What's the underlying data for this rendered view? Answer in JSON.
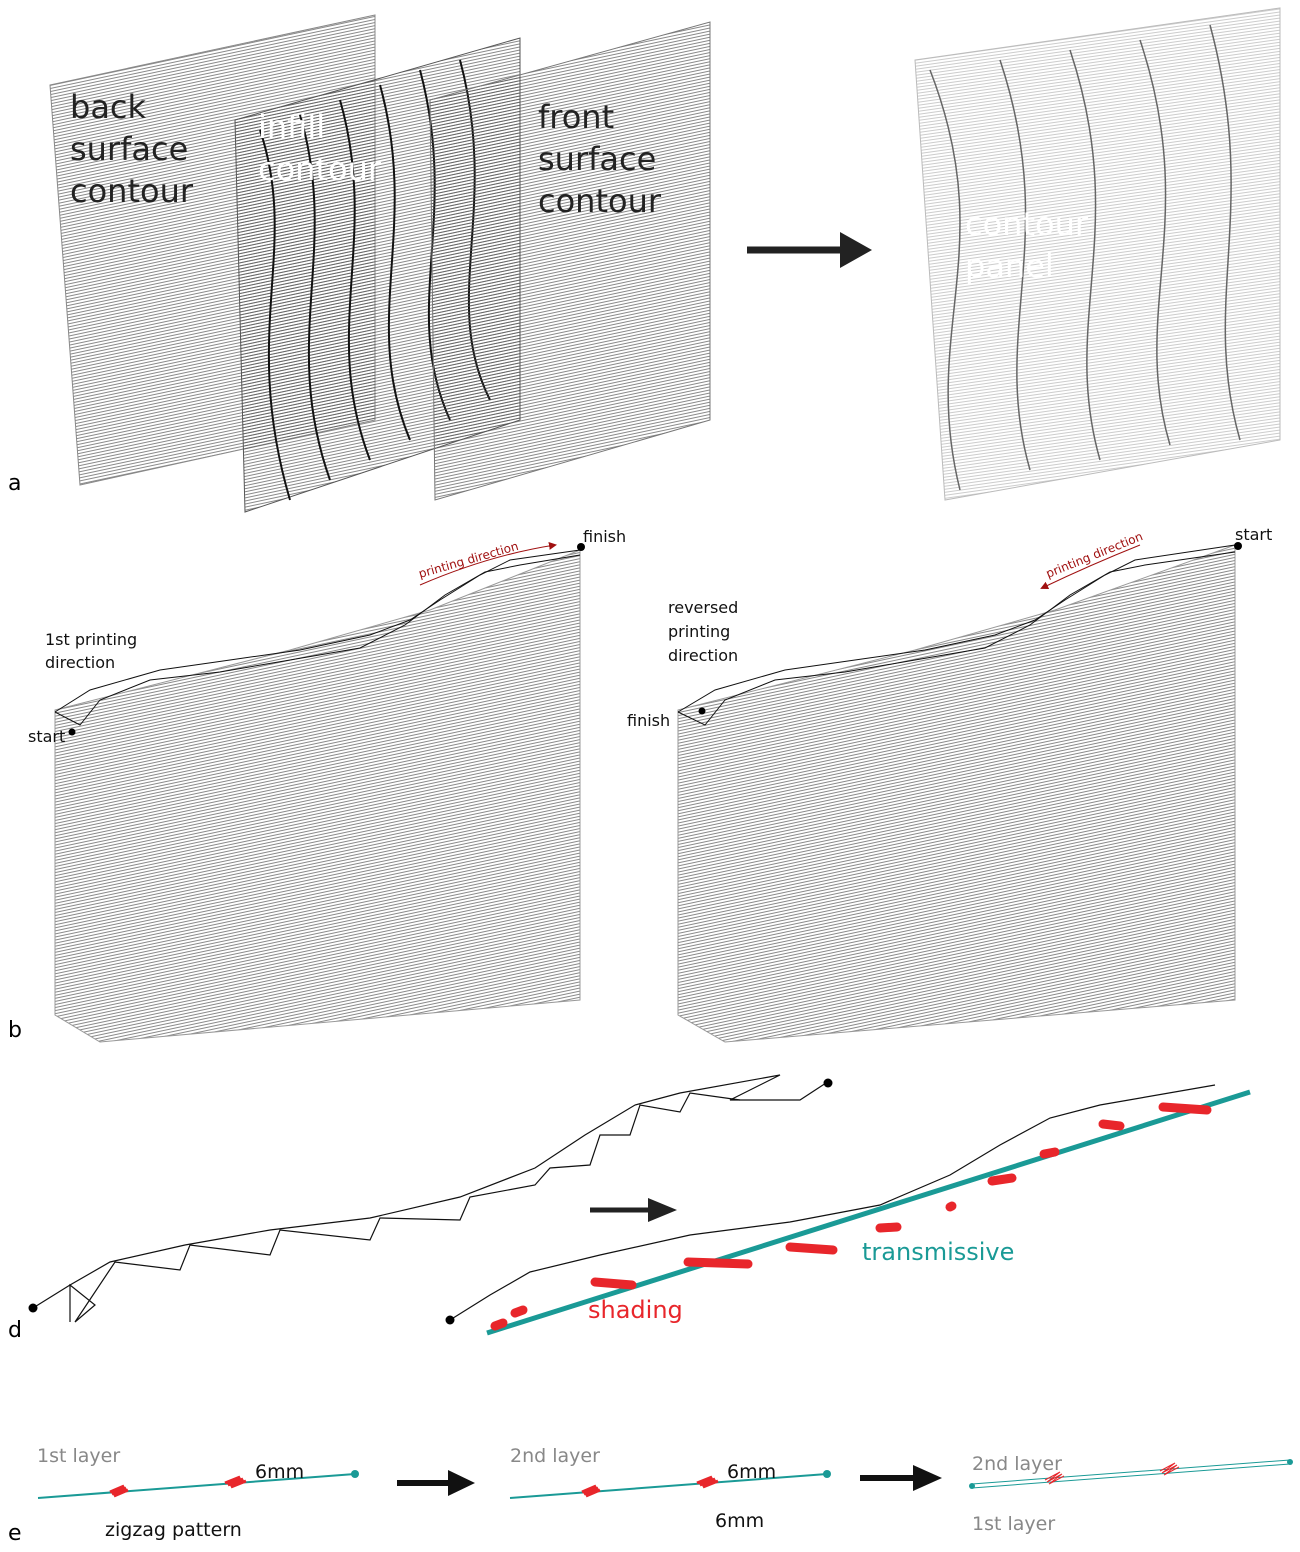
{
  "panel_a": {
    "label": "a",
    "back": [
      "back",
      "surface",
      "contour"
    ],
    "infill": [
      "infill",
      "contour"
    ],
    "front": [
      "front",
      "surface",
      "contour"
    ],
    "result": [
      "contour",
      "panel"
    ]
  },
  "panel_b": {
    "label": "b",
    "left": {
      "finish": "finish",
      "direction": "printing direction",
      "caption": [
        "1st printing",
        "direction"
      ],
      "start": "start"
    },
    "right": {
      "start": "start",
      "direction": "printing direction",
      "caption": [
        "reversed",
        "printing",
        "direction"
      ],
      "finish": "finish"
    }
  },
  "panel_d": {
    "label": "d",
    "transmissive": "transmissive",
    "shading": "shading"
  },
  "panel_e": {
    "label": "e",
    "step1": {
      "layer": "1st layer",
      "gap": "6mm",
      "caption": "zigzag pattern"
    },
    "step2": {
      "layer": "2nd layer",
      "gap_top": "6mm",
      "gap_bottom": "6mm"
    },
    "step3": {
      "top": "2nd layer",
      "bottom": "1st layer"
    }
  }
}
